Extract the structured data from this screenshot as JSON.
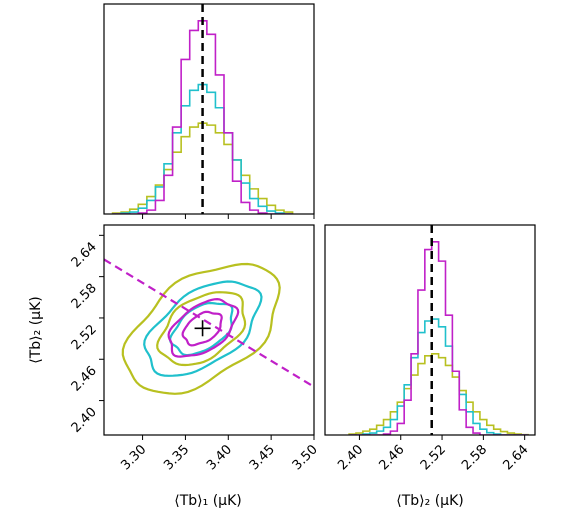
{
  "chart_data": [
    {
      "panel": "marginal <Tb>1",
      "type": "step-histogram",
      "x": [
        3.27,
        3.28,
        3.29,
        3.3,
        3.31,
        3.32,
        3.33,
        3.34,
        3.35,
        3.36,
        3.37,
        3.38,
        3.39,
        3.4,
        3.41,
        3.42,
        3.43,
        3.44,
        3.45,
        3.46,
        3.47
      ],
      "xlim": [
        3.255,
        3.5
      ],
      "series": [
        {
          "color": "#c020c8",
          "values": [
            0,
            0,
            0,
            0.005,
            0.02,
            0.07,
            0.2,
            0.45,
            0.8,
            0.95,
            1.0,
            0.93,
            0.72,
            0.42,
            0.17,
            0.06,
            0.02,
            0.005,
            0,
            0,
            0
          ]
        },
        {
          "color": "#20c0cc",
          "values": [
            0,
            0.005,
            0.01,
            0.03,
            0.07,
            0.14,
            0.26,
            0.42,
            0.56,
            0.64,
            0.67,
            0.63,
            0.55,
            0.42,
            0.28,
            0.16,
            0.08,
            0.04,
            0.015,
            0.005,
            0
          ]
        },
        {
          "color": "#b8c020",
          "values": [
            0.005,
            0.01,
            0.025,
            0.05,
            0.09,
            0.15,
            0.23,
            0.32,
            0.4,
            0.45,
            0.47,
            0.46,
            0.42,
            0.36,
            0.28,
            0.2,
            0.13,
            0.08,
            0.045,
            0.02,
            0.01
          ]
        }
      ],
      "truth": 3.37
    },
    {
      "panel": "joint",
      "type": "contour",
      "xlabel": "⟨Tb⟩₁ (μK)",
      "ylabel": "⟨Tb⟩₂ (μK)",
      "xlim": [
        3.255,
        3.5
      ],
      "ylim": [
        2.35,
        2.655
      ],
      "xticks": [
        "3.30",
        "3.35",
        "3.40",
        "3.45",
        "3.50"
      ],
      "yticks": [
        "2.40",
        "2.46",
        "2.52",
        "2.58",
        "2.64"
      ],
      "center": [
        3.37,
        2.505
      ],
      "series": [
        {
          "color": "#c020c8",
          "ellipses": [
            {
              "a": 0.028,
              "b": 0.018,
              "angle": 38
            },
            {
              "a": 0.05,
              "b": 0.03,
              "angle": 38
            }
          ]
        },
        {
          "color": "#20c0cc",
          "ellipses": [
            {
              "a": 0.045,
              "b": 0.028,
              "angle": 38
            },
            {
              "a": 0.085,
              "b": 0.048,
              "angle": 38
            }
          ]
        },
        {
          "color": "#b8c020",
          "ellipses": [
            {
              "a": 0.063,
              "b": 0.04,
              "angle": 38
            },
            {
              "a": 0.115,
              "b": 0.067,
              "angle": 38
            }
          ]
        }
      ],
      "line": {
        "color": "#c020c8",
        "points": [
          [
            3.255,
            2.605
          ],
          [
            3.5,
            2.42
          ]
        ]
      },
      "truth": [
        3.37,
        2.505
      ]
    },
    {
      "panel": "marginal <Tb>2",
      "type": "step-histogram",
      "xlabel": "⟨Tb⟩₂ (μK)",
      "xlim": [
        2.35,
        2.655
      ],
      "xticks": [
        "2.40",
        "2.46",
        "2.52",
        "2.58",
        "2.64"
      ],
      "x": [
        2.39,
        2.4,
        2.41,
        2.42,
        2.43,
        2.44,
        2.45,
        2.46,
        2.47,
        2.48,
        2.49,
        2.5,
        2.51,
        2.52,
        2.53,
        2.54,
        2.55,
        2.56,
        2.57,
        2.58,
        2.59,
        2.6,
        2.61,
        2.62,
        2.63,
        2.64
      ],
      "series": [
        {
          "color": "#c020c8",
          "values": [
            0,
            0,
            0,
            0,
            0,
            0.005,
            0.02,
            0.06,
            0.18,
            0.42,
            0.75,
            0.96,
            1.0,
            0.9,
            0.62,
            0.33,
            0.13,
            0.04,
            0.01,
            0,
            0,
            0,
            0,
            0,
            0,
            0
          ]
        },
        {
          "color": "#20c0cc",
          "values": [
            0,
            0,
            0.005,
            0.01,
            0.02,
            0.04,
            0.08,
            0.15,
            0.26,
            0.4,
            0.53,
            0.59,
            0.6,
            0.56,
            0.46,
            0.33,
            0.21,
            0.12,
            0.06,
            0.03,
            0.012,
            0.005,
            0,
            0,
            0,
            0
          ]
        },
        {
          "color": "#b8c020",
          "values": [
            0.005,
            0.01,
            0.02,
            0.03,
            0.05,
            0.08,
            0.12,
            0.17,
            0.24,
            0.31,
            0.37,
            0.41,
            0.42,
            0.4,
            0.36,
            0.3,
            0.23,
            0.17,
            0.12,
            0.08,
            0.05,
            0.03,
            0.018,
            0.01,
            0.005,
            0.002
          ]
        }
      ],
      "truth": 2.505
    }
  ]
}
